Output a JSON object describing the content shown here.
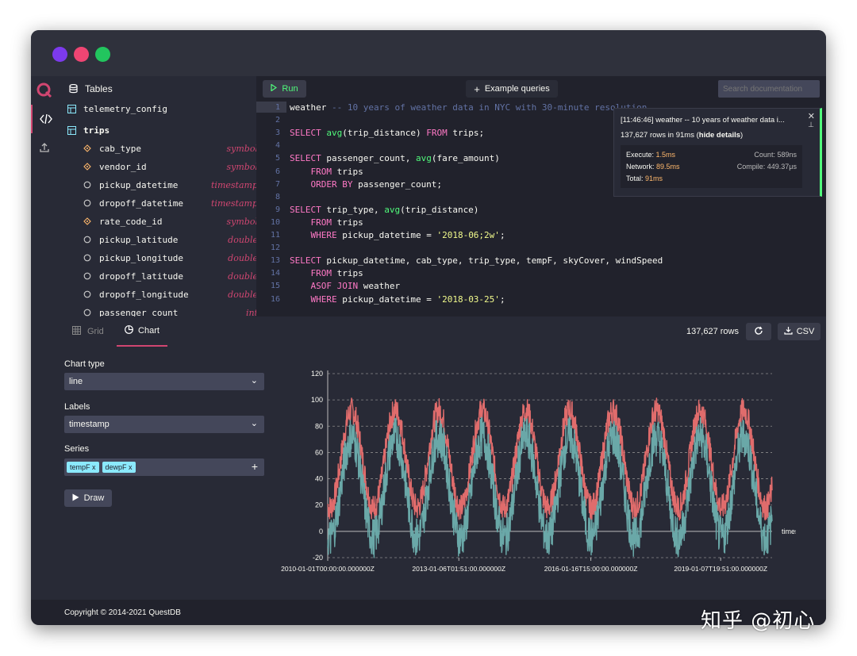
{
  "colors": {
    "dot_purple": "#7c3aed",
    "dot_pink": "#ef4573",
    "dot_green": "#22c55e",
    "accent": "#d14671",
    "series_tempF": "#e06c6c",
    "series_dewpF": "#6aa8a8",
    "run_green": "#50fa7b"
  },
  "menu": {
    "items": [
      {
        "icon": "logo-icon"
      },
      {
        "icon": "code-icon"
      },
      {
        "icon": "upload-icon"
      }
    ]
  },
  "tables_panel": {
    "title": "Tables",
    "tables": [
      "telemetry_config",
      "trips"
    ],
    "columns": [
      {
        "name": "cab_type",
        "type": "symbol",
        "icon": "symbol-icon"
      },
      {
        "name": "vendor_id",
        "type": "symbol",
        "icon": "symbol-icon"
      },
      {
        "name": "pickup_datetime",
        "type": "timestamp",
        "icon": "circle-icon"
      },
      {
        "name": "dropoff_datetime",
        "type": "timestamp",
        "icon": "circle-icon"
      },
      {
        "name": "rate_code_id",
        "type": "symbol",
        "icon": "symbol-icon"
      },
      {
        "name": "pickup_latitude",
        "type": "double",
        "icon": "circle-icon"
      },
      {
        "name": "pickup_longitude",
        "type": "double",
        "icon": "circle-icon"
      },
      {
        "name": "dropoff_latitude",
        "type": "double",
        "icon": "circle-icon"
      },
      {
        "name": "dropoff_longitude",
        "type": "double",
        "icon": "circle-icon"
      },
      {
        "name": "passenger_count",
        "type": "int",
        "icon": "circle-icon"
      }
    ]
  },
  "editor": {
    "run_label": "Run",
    "examples_label": "Example queries",
    "search_placeholder": "Search documentation",
    "line_numbers": [
      "1",
      "2",
      "3",
      "4",
      "5",
      "6",
      "7",
      "8",
      "9",
      "10",
      "11",
      "12",
      "13",
      "14",
      "15",
      "16"
    ],
    "lines": [
      [
        {
          "t": "weather ",
          "c": ""
        },
        {
          "t": "-- 10 years of weather data in NYC with 30-minute resolution",
          "c": "cm"
        }
      ],
      [],
      [
        {
          "t": "SELECT ",
          "c": "kw"
        },
        {
          "t": "avg",
          "c": "fn"
        },
        {
          "t": "(trip_distance) ",
          "c": ""
        },
        {
          "t": "FROM ",
          "c": "kw"
        },
        {
          "t": "trips;",
          "c": ""
        }
      ],
      [],
      [
        {
          "t": "SELECT ",
          "c": "kw"
        },
        {
          "t": "passenger_count, ",
          "c": ""
        },
        {
          "t": "avg",
          "c": "fn"
        },
        {
          "t": "(fare_amount)",
          "c": ""
        }
      ],
      [
        {
          "t": "    FROM ",
          "c": "kw"
        },
        {
          "t": "trips",
          "c": ""
        }
      ],
      [
        {
          "t": "    ORDER BY ",
          "c": "kw"
        },
        {
          "t": "passenger_count;",
          "c": ""
        }
      ],
      [],
      [
        {
          "t": "SELECT ",
          "c": "kw"
        },
        {
          "t": "trip_type, ",
          "c": ""
        },
        {
          "t": "avg",
          "c": "fn"
        },
        {
          "t": "(trip_distance)",
          "c": ""
        }
      ],
      [
        {
          "t": "    FROM ",
          "c": "kw"
        },
        {
          "t": "trips",
          "c": ""
        }
      ],
      [
        {
          "t": "    WHERE ",
          "c": "kw"
        },
        {
          "t": "pickup_datetime = ",
          "c": ""
        },
        {
          "t": "'2018-06;2w'",
          "c": "str"
        },
        {
          "t": ";",
          "c": ""
        }
      ],
      [],
      [
        {
          "t": "SELECT ",
          "c": "kw"
        },
        {
          "t": "pickup_datetime, cab_type, trip_type, tempF, skyCover, windSpeed",
          "c": ""
        }
      ],
      [
        {
          "t": "    FROM ",
          "c": "kw"
        },
        {
          "t": "trips",
          "c": ""
        }
      ],
      [
        {
          "t": "    ASOF JOIN ",
          "c": "kw"
        },
        {
          "t": "weather",
          "c": ""
        }
      ],
      [
        {
          "t": "    WHERE ",
          "c": "kw"
        },
        {
          "t": "pickup_datetime = ",
          "c": ""
        },
        {
          "t": "'2018-03-25'",
          "c": "str"
        },
        {
          "t": ";",
          "c": ""
        }
      ]
    ]
  },
  "notification": {
    "title": "[11:46:46] weather -- 10 years of weather data i...",
    "rows_text": "137,627 rows in 91ms",
    "hide_details": "hide details",
    "execute_label": "Execute:",
    "execute_value": "1.5ms",
    "network_label": "Network:",
    "network_value": "89.5ms",
    "total_label": "Total:",
    "total_value": "91ms",
    "count_label": "Count:",
    "count_value": "589ns",
    "compile_label": "Compile:",
    "compile_value": "449.37μs"
  },
  "results": {
    "tab_grid": "Grid",
    "tab_chart": "Chart",
    "row_count": "137,627 rows",
    "csv_label": "CSV"
  },
  "chart_form": {
    "chart_type_label": "Chart type",
    "chart_type_value": "line",
    "labels_label": "Labels",
    "labels_value": "timestamp",
    "series_label": "Series",
    "series_chips": [
      "tempF x",
      "dewpF x"
    ],
    "draw_label": "Draw"
  },
  "chart_data": {
    "type": "line",
    "xlabel": "timestamp",
    "ylim": [
      -20,
      120
    ],
    "yticks": [
      -20,
      0,
      20,
      40,
      60,
      80,
      100,
      120
    ],
    "xticks": [
      "2010-01-01T00:00:00.000000Z",
      "2013-01-06T01:51:00.000000Z",
      "2016-01-16T15:00:00.000000Z",
      "2019-01-07T19:51:00.000000Z"
    ],
    "x_start_year": 2010,
    "x_end_year": 2020.2,
    "series": [
      {
        "name": "tempF",
        "approx_seasonal": {
          "peak": 92,
          "trough": 18,
          "noise": 10
        }
      },
      {
        "name": "dewpF",
        "approx_seasonal": {
          "peak": 72,
          "trough": -5,
          "noise": 12
        }
      }
    ],
    "grid": true
  },
  "footer": {
    "copyright": "Copyright © 2014-2021 QuestDB"
  },
  "watermark": "知乎 @初心"
}
